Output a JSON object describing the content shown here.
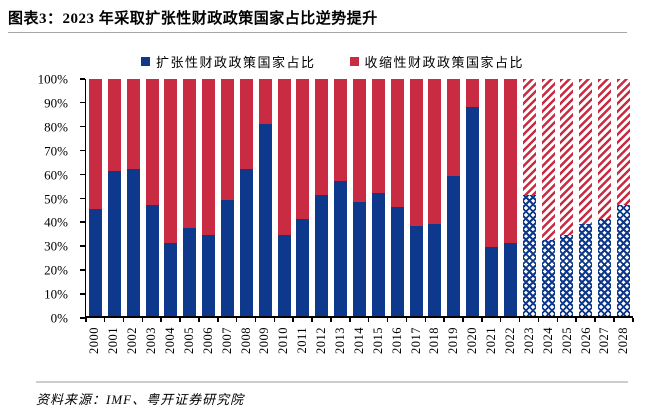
{
  "figure": {
    "title": "图表3：2023 年采取扩张性财政政策国家占比逆势提升",
    "source": "资料来源：IMF、粤开证券研究院"
  },
  "colors": {
    "expansionary_blue": "#0D388C",
    "contractionary_red": "#C82B42",
    "rule_gray": "#A6A6A6",
    "source_rule_gray": "#CCCCCC"
  },
  "legend": [
    {
      "label": "扩张性财政政策国家占比",
      "color": "#0D388C"
    },
    {
      "label": "收缩性财政政策国家占比",
      "color": "#C82B42"
    }
  ],
  "chart_data": {
    "type": "bar",
    "stacked": true,
    "percent_stacked": true,
    "title": "2023 年采取扩张性财政政策国家占比逆势提升",
    "xlabel": "",
    "ylabel": "",
    "ylim": [
      0,
      100
    ],
    "grid": false,
    "legend_position": "top-center",
    "categories": [
      "2000",
      "2001",
      "2002",
      "2003",
      "2004",
      "2005",
      "2006",
      "2007",
      "2008",
      "2009",
      "2010",
      "2011",
      "2012",
      "2013",
      "2014",
      "2015",
      "2016",
      "2017",
      "2018",
      "2019",
      "2020",
      "2021",
      "2022",
      "2023",
      "2024",
      "2025",
      "2026",
      "2027",
      "2028"
    ],
    "series": [
      {
        "name": "扩张性财政政策国家占比",
        "color": "#0D388C",
        "values": [
          45,
          61,
          62,
          47,
          31,
          37,
          34,
          49,
          62,
          81,
          34,
          41,
          51,
          57,
          48,
          52,
          46,
          38,
          39,
          59,
          88,
          29,
          31,
          51,
          32,
          34,
          39,
          41,
          47
        ]
      },
      {
        "name": "收缩性财政政策国家占比",
        "color": "#C82B42",
        "values": [
          55,
          39,
          38,
          53,
          69,
          63,
          66,
          51,
          38,
          19,
          66,
          59,
          49,
          43,
          52,
          48,
          54,
          62,
          61,
          41,
          12,
          71,
          69,
          49,
          68,
          66,
          61,
          59,
          53
        ]
      }
    ],
    "hatched_from_category": "2023",
    "hatched_note": "2023-2028 bars drawn with hatch pattern (forecast)",
    "y_tick_labels": [
      "0%",
      "10%",
      "20%",
      "30%",
      "40%",
      "50%",
      "60%",
      "70%",
      "80%",
      "90%",
      "100%"
    ]
  }
}
